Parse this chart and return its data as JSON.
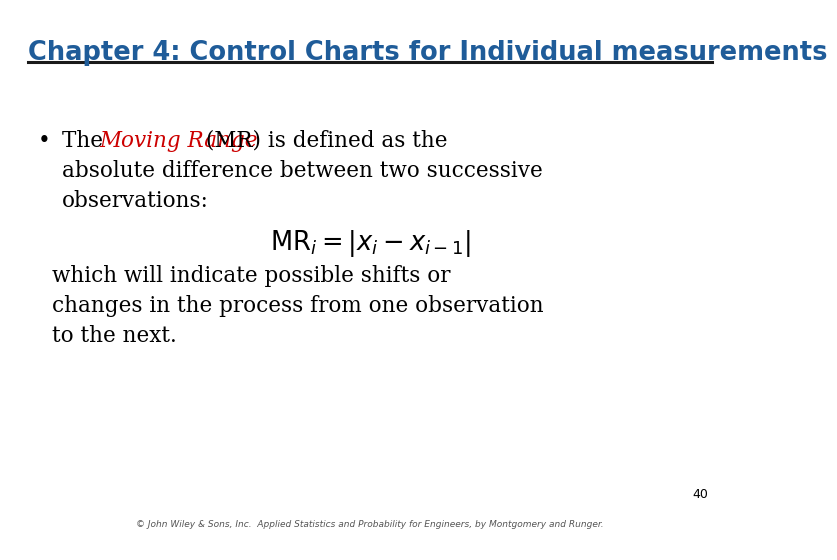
{
  "title": "Chapter 4: Control Charts for Individual measurements",
  "title_color": "#1F5C99",
  "title_fontsize": 18.5,
  "bg_color": "#FFFFFF",
  "line_color": "#1A1A1A",
  "body_fontsize": 15.5,
  "body_color": "#000000",
  "italic_color": "#CC0000",
  "footer_text": "© John Wiley & Sons, Inc.  Applied Statistics and Probability for Engineers, by Montgomery and Runger.",
  "page_number": "40"
}
